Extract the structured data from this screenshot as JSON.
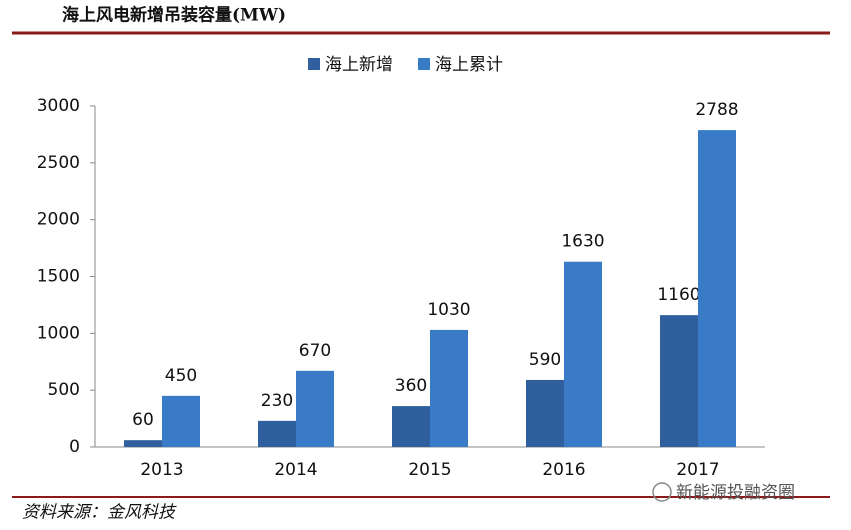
{
  "chart_data": {
    "type": "bar",
    "title": "海上风电新增吊装容量(MW)",
    "categories": [
      "2013",
      "2014",
      "2015",
      "2016",
      "2017"
    ],
    "series": [
      {
        "name": "海上新增",
        "color": "#2f5f9c",
        "values": [
          60,
          230,
          360,
          590,
          1160
        ]
      },
      {
        "name": "海上累计",
        "color": "#3a7bc8",
        "values": [
          450,
          670,
          1030,
          1630,
          2788
        ]
      }
    ],
    "ylim": [
      0,
      3000
    ],
    "yticks": [
      0,
      500,
      1000,
      1500,
      2000,
      2500,
      3000
    ],
    "grid": false,
    "legend": "top",
    "source": "资料来源：金风科技",
    "watermark": "新能源投融资圈"
  }
}
